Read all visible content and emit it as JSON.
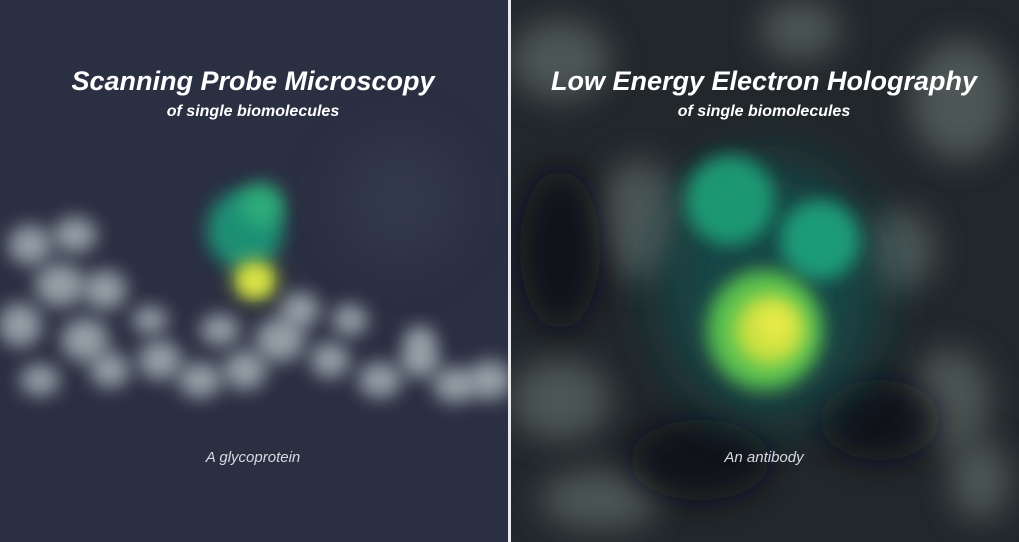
{
  "panels": [
    {
      "title": "Scanning Probe Microscopy",
      "subtitle": "of single biomolecules",
      "caption": "A glycoprotein"
    },
    {
      "title": "Low Energy Electron Holography",
      "subtitle": "of single biomolecules",
      "caption": "An antibody"
    }
  ]
}
